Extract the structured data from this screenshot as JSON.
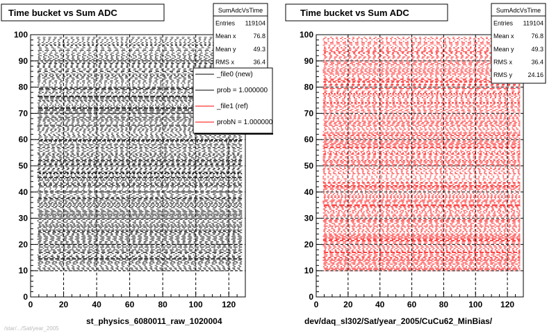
{
  "colors": {
    "background": "#ffffff",
    "frame": "#000000",
    "new": "#000000",
    "ref": "#ff0000"
  },
  "footer": {
    "text": "/star/.../Sat/year_2005"
  },
  "chart_data": [
    {
      "type": "scatter",
      "title": "Time bucket vs Sum ADC",
      "xlabel": "st_physics_6080011_raw_1020004",
      "ylabel": "",
      "xlim": [
        0,
        130
      ],
      "ylim": [
        0,
        100
      ],
      "x_ticks": [
        0,
        20,
        40,
        60,
        80,
        100,
        120
      ],
      "y_ticks": [
        0,
        10,
        20,
        30,
        40,
        50,
        60,
        70,
        80,
        90,
        100
      ],
      "grid": true,
      "point_color": "#000000",
      "stats": {
        "name": "SumAdcVsTime",
        "rows": [
          {
            "label": "Entries",
            "value": "119104"
          },
          {
            "label": "Mean x",
            "value": "76.8"
          },
          {
            "label": "Mean y",
            "value": "49.3"
          },
          {
            "label": "RMS x",
            "value": "36.4"
          }
        ]
      },
      "legend": {
        "position": "top-right",
        "entries": [
          {
            "label": "_file0 (new)",
            "color": "#000000"
          },
          {
            "label": "prob = 1.000000",
            "color": "#000000"
          },
          {
            "label": "_file1 (ref)",
            "color": "#ff0000"
          },
          {
            "label": "probN = 1.000000",
            "color": "#ff0000"
          }
        ]
      },
      "bands": {
        "x_range": [
          4,
          128
        ],
        "y_range": [
          10,
          99
        ],
        "row_step": 0.5
      }
    },
    {
      "type": "scatter",
      "title": "Time bucket vs Sum ADC",
      "xlabel": "dev/daq_sl302/Sat/year_2005/CuCu62_MinBias/",
      "ylabel": "",
      "xlim": [
        0,
        130
      ],
      "ylim": [
        0,
        100
      ],
      "x_ticks": [
        0,
        20,
        40,
        60,
        80,
        100,
        120
      ],
      "y_ticks": [
        0,
        10,
        20,
        30,
        40,
        50,
        60,
        70,
        80,
        90,
        100
      ],
      "grid": true,
      "point_color": "#ff0000",
      "stats": {
        "name": "SumAdcVsTime",
        "rows": [
          {
            "label": "Entries",
            "value": "119104"
          },
          {
            "label": "Mean x",
            "value": "76.8"
          },
          {
            "label": "Mean y",
            "value": "49.3"
          },
          {
            "label": "RMS x",
            "value": "36.4"
          },
          {
            "label": "RMS y",
            "value": "24.16"
          }
        ]
      },
      "bands": {
        "x_range": [
          4,
          128
        ],
        "y_range": [
          10,
          99
        ],
        "row_step": 0.5
      }
    }
  ]
}
